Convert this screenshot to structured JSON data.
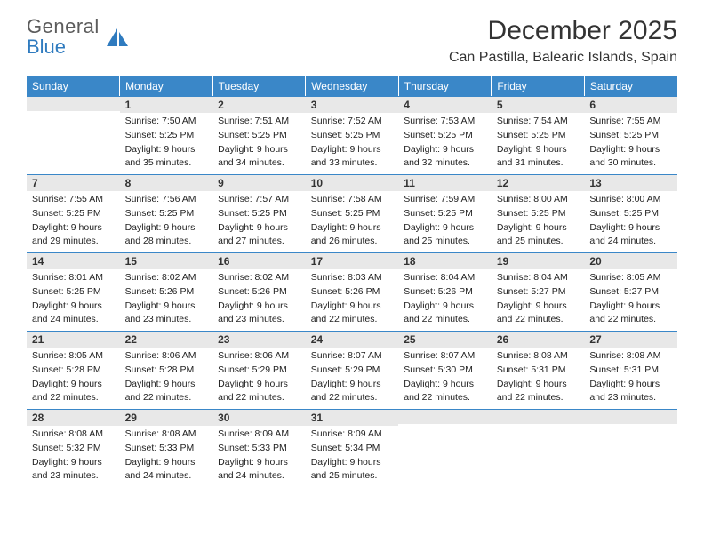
{
  "brand": {
    "line1": "General",
    "line2": "Blue"
  },
  "title": "December 2025",
  "location": "Can Pastilla, Balearic Islands, Spain",
  "colors": {
    "header_bg": "#3a87c8",
    "header_text": "#ffffff",
    "day_bg": "#e8e8e8",
    "border": "#3a87c8",
    "brand_gray": "#5c5c5c",
    "brand_blue": "#2f7bbf"
  },
  "weekdays": [
    "Sunday",
    "Monday",
    "Tuesday",
    "Wednesday",
    "Thursday",
    "Friday",
    "Saturday"
  ],
  "weeks": [
    [
      {
        "n": "",
        "sr": "",
        "ss": "",
        "dl": ""
      },
      {
        "n": "1",
        "sr": "Sunrise: 7:50 AM",
        "ss": "Sunset: 5:25 PM",
        "dl": "Daylight: 9 hours and 35 minutes."
      },
      {
        "n": "2",
        "sr": "Sunrise: 7:51 AM",
        "ss": "Sunset: 5:25 PM",
        "dl": "Daylight: 9 hours and 34 minutes."
      },
      {
        "n": "3",
        "sr": "Sunrise: 7:52 AM",
        "ss": "Sunset: 5:25 PM",
        "dl": "Daylight: 9 hours and 33 minutes."
      },
      {
        "n": "4",
        "sr": "Sunrise: 7:53 AM",
        "ss": "Sunset: 5:25 PM",
        "dl": "Daylight: 9 hours and 32 minutes."
      },
      {
        "n": "5",
        "sr": "Sunrise: 7:54 AM",
        "ss": "Sunset: 5:25 PM",
        "dl": "Daylight: 9 hours and 31 minutes."
      },
      {
        "n": "6",
        "sr": "Sunrise: 7:55 AM",
        "ss": "Sunset: 5:25 PM",
        "dl": "Daylight: 9 hours and 30 minutes."
      }
    ],
    [
      {
        "n": "7",
        "sr": "Sunrise: 7:55 AM",
        "ss": "Sunset: 5:25 PM",
        "dl": "Daylight: 9 hours and 29 minutes."
      },
      {
        "n": "8",
        "sr": "Sunrise: 7:56 AM",
        "ss": "Sunset: 5:25 PM",
        "dl": "Daylight: 9 hours and 28 minutes."
      },
      {
        "n": "9",
        "sr": "Sunrise: 7:57 AM",
        "ss": "Sunset: 5:25 PM",
        "dl": "Daylight: 9 hours and 27 minutes."
      },
      {
        "n": "10",
        "sr": "Sunrise: 7:58 AM",
        "ss": "Sunset: 5:25 PM",
        "dl": "Daylight: 9 hours and 26 minutes."
      },
      {
        "n": "11",
        "sr": "Sunrise: 7:59 AM",
        "ss": "Sunset: 5:25 PM",
        "dl": "Daylight: 9 hours and 25 minutes."
      },
      {
        "n": "12",
        "sr": "Sunrise: 8:00 AM",
        "ss": "Sunset: 5:25 PM",
        "dl": "Daylight: 9 hours and 25 minutes."
      },
      {
        "n": "13",
        "sr": "Sunrise: 8:00 AM",
        "ss": "Sunset: 5:25 PM",
        "dl": "Daylight: 9 hours and 24 minutes."
      }
    ],
    [
      {
        "n": "14",
        "sr": "Sunrise: 8:01 AM",
        "ss": "Sunset: 5:25 PM",
        "dl": "Daylight: 9 hours and 24 minutes."
      },
      {
        "n": "15",
        "sr": "Sunrise: 8:02 AM",
        "ss": "Sunset: 5:26 PM",
        "dl": "Daylight: 9 hours and 23 minutes."
      },
      {
        "n": "16",
        "sr": "Sunrise: 8:02 AM",
        "ss": "Sunset: 5:26 PM",
        "dl": "Daylight: 9 hours and 23 minutes."
      },
      {
        "n": "17",
        "sr": "Sunrise: 8:03 AM",
        "ss": "Sunset: 5:26 PM",
        "dl": "Daylight: 9 hours and 22 minutes."
      },
      {
        "n": "18",
        "sr": "Sunrise: 8:04 AM",
        "ss": "Sunset: 5:26 PM",
        "dl": "Daylight: 9 hours and 22 minutes."
      },
      {
        "n": "19",
        "sr": "Sunrise: 8:04 AM",
        "ss": "Sunset: 5:27 PM",
        "dl": "Daylight: 9 hours and 22 minutes."
      },
      {
        "n": "20",
        "sr": "Sunrise: 8:05 AM",
        "ss": "Sunset: 5:27 PM",
        "dl": "Daylight: 9 hours and 22 minutes."
      }
    ],
    [
      {
        "n": "21",
        "sr": "Sunrise: 8:05 AM",
        "ss": "Sunset: 5:28 PM",
        "dl": "Daylight: 9 hours and 22 minutes."
      },
      {
        "n": "22",
        "sr": "Sunrise: 8:06 AM",
        "ss": "Sunset: 5:28 PM",
        "dl": "Daylight: 9 hours and 22 minutes."
      },
      {
        "n": "23",
        "sr": "Sunrise: 8:06 AM",
        "ss": "Sunset: 5:29 PM",
        "dl": "Daylight: 9 hours and 22 minutes."
      },
      {
        "n": "24",
        "sr": "Sunrise: 8:07 AM",
        "ss": "Sunset: 5:29 PM",
        "dl": "Daylight: 9 hours and 22 minutes."
      },
      {
        "n": "25",
        "sr": "Sunrise: 8:07 AM",
        "ss": "Sunset: 5:30 PM",
        "dl": "Daylight: 9 hours and 22 minutes."
      },
      {
        "n": "26",
        "sr": "Sunrise: 8:08 AM",
        "ss": "Sunset: 5:31 PM",
        "dl": "Daylight: 9 hours and 22 minutes."
      },
      {
        "n": "27",
        "sr": "Sunrise: 8:08 AM",
        "ss": "Sunset: 5:31 PM",
        "dl": "Daylight: 9 hours and 23 minutes."
      }
    ],
    [
      {
        "n": "28",
        "sr": "Sunrise: 8:08 AM",
        "ss": "Sunset: 5:32 PM",
        "dl": "Daylight: 9 hours and 23 minutes."
      },
      {
        "n": "29",
        "sr": "Sunrise: 8:08 AM",
        "ss": "Sunset: 5:33 PM",
        "dl": "Daylight: 9 hours and 24 minutes."
      },
      {
        "n": "30",
        "sr": "Sunrise: 8:09 AM",
        "ss": "Sunset: 5:33 PM",
        "dl": "Daylight: 9 hours and 24 minutes."
      },
      {
        "n": "31",
        "sr": "Sunrise: 8:09 AM",
        "ss": "Sunset: 5:34 PM",
        "dl": "Daylight: 9 hours and 25 minutes."
      },
      {
        "n": "",
        "sr": "",
        "ss": "",
        "dl": ""
      },
      {
        "n": "",
        "sr": "",
        "ss": "",
        "dl": ""
      },
      {
        "n": "",
        "sr": "",
        "ss": "",
        "dl": ""
      }
    ]
  ]
}
